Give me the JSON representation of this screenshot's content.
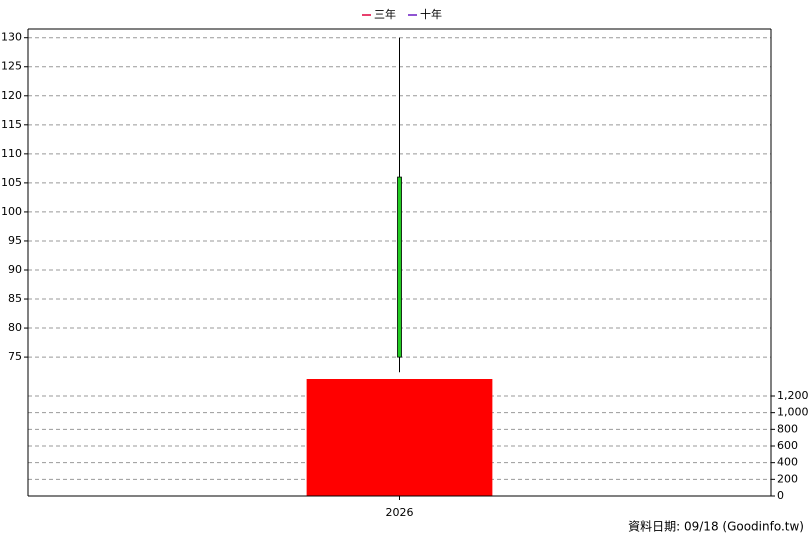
{
  "chart_data": [
    {
      "type": "candlestick",
      "legend": [
        {
          "name": "三年",
          "color": "#e0003c"
        },
        {
          "name": "十年",
          "color": "#6a1bc2"
        }
      ],
      "open": [
        106
      ],
      "high": [
        130
      ],
      "low": [
        72.4
      ],
      "close": [
        75
      ],
      "down_color": "#22cc22",
      "ylim": [
        71.4,
        131.5
      ],
      "yticks": [
        75,
        80,
        85,
        90,
        95,
        100,
        105,
        110,
        115,
        120,
        125,
        130
      ],
      "grid": true
    },
    {
      "type": "bar",
      "categories": [
        "2026"
      ],
      "values": [
        1404
      ],
      "color": "#ff0000",
      "ylim": [
        0,
        1416
      ],
      "yticks": [
        0,
        200,
        400,
        600,
        800,
        {
          "value": 1000,
          "label": "1,000"
        },
        {
          "value": 1200,
          "label": "1,200"
        }
      ],
      "grid": true
    }
  ],
  "source_note": "資料日期: 09/18  (Goodinfo.tw)"
}
